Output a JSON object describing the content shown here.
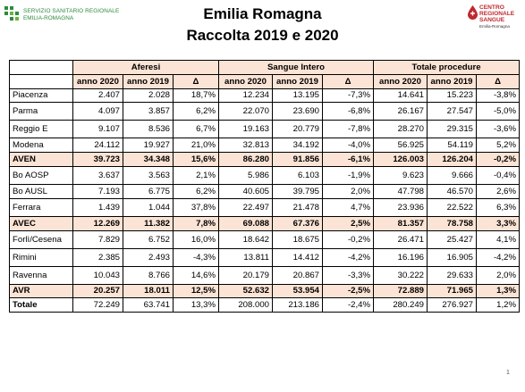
{
  "header": {
    "logo_left_line1": "SERVIZIO SANITARIO REGIONALE",
    "logo_left_line2": "EMILIA-ROMAGNA",
    "logo_right_line1": "CENTRO",
    "logo_right_line2": "REGIONALE",
    "logo_right_line3": "SANGUE",
    "logo_right_line4": "Emilia-Romagna",
    "title_line1": "Emilia Romagna",
    "title_line2": "Raccolta 2019 e 2020"
  },
  "table": {
    "groups": [
      "Aferesi",
      "Sangue Intero",
      "Totale procedure"
    ],
    "subheaders": [
      "anno 2020",
      "anno 2019",
      "Δ",
      "anno 2020",
      "anno 2019",
      "Δ",
      "anno 2020",
      "anno 2019",
      "Δ"
    ],
    "rows": [
      {
        "label": "Piacenza",
        "type": "normal",
        "cells": [
          "2.407",
          "2.028",
          "18,7%",
          "12.234",
          "13.195",
          "-7,3%",
          "14.641",
          "15.223",
          "-3,8%"
        ]
      },
      {
        "label": "Parma",
        "type": "tall",
        "cells": [
          "4.097",
          "3.857",
          "6,2%",
          "22.070",
          "23.690",
          "-6,8%",
          "26.167",
          "27.547",
          "-5,0%"
        ]
      },
      {
        "label": "Reggio E",
        "type": "tall",
        "cells": [
          "9.107",
          "8.536",
          "6,7%",
          "19.163",
          "20.779",
          "-7,8%",
          "28.270",
          "29.315",
          "-3,6%"
        ]
      },
      {
        "label": "Modena",
        "type": "normal",
        "cells": [
          "24.112",
          "19.927",
          "21,0%",
          "32.813",
          "34.192",
          "-4,0%",
          "56.925",
          "54.119",
          "5,2%"
        ]
      },
      {
        "label": "AVEN",
        "type": "sum",
        "cells": [
          "39.723",
          "34.348",
          "15,6%",
          "86.280",
          "91.856",
          "-6,1%",
          "126.003",
          "126.204",
          "-0,2%"
        ]
      },
      {
        "label": "Bo AOSP",
        "type": "tall",
        "cells": [
          "3.637",
          "3.563",
          "2,1%",
          "5.986",
          "6.103",
          "-1,9%",
          "9.623",
          "9.666",
          "-0,4%"
        ]
      },
      {
        "label": "Bo AUSL",
        "type": "normal",
        "cells": [
          "7.193",
          "6.775",
          "6,2%",
          "40.605",
          "39.795",
          "2,0%",
          "47.798",
          "46.570",
          "2,6%"
        ]
      },
      {
        "label": "Ferrara",
        "type": "tall",
        "cells": [
          "1.439",
          "1.044",
          "37,8%",
          "22.497",
          "21.478",
          "4,7%",
          "23.936",
          "22.522",
          "6,3%"
        ]
      },
      {
        "label": "AVEC",
        "type": "sum",
        "cells": [
          "12.269",
          "11.382",
          "7,8%",
          "69.088",
          "67.376",
          "2,5%",
          "81.357",
          "78.758",
          "3,3%"
        ]
      },
      {
        "label": "Forlì/Cesena",
        "type": "tall",
        "cells": [
          "7.829",
          "6.752",
          "16,0%",
          "18.642",
          "18.675",
          "-0,2%",
          "26.471",
          "25.427",
          "4,1%"
        ]
      },
      {
        "label": "Rimini",
        "type": "tall",
        "cells": [
          "2.385",
          "2.493",
          "-4,3%",
          "13.811",
          "14.412",
          "-4,2%",
          "16.196",
          "16.905",
          "-4,2%"
        ]
      },
      {
        "label": "Ravenna",
        "type": "tall",
        "cells": [
          "10.043",
          "8.766",
          "14,6%",
          "20.179",
          "20.867",
          "-3,3%",
          "30.222",
          "29.633",
          "2,0%"
        ]
      },
      {
        "label": "AVR",
        "type": "sum",
        "cells": [
          "20.257",
          "18.011",
          "12,5%",
          "52.632",
          "53.954",
          "-2,5%",
          "72.889",
          "71.965",
          "1,3%"
        ]
      },
      {
        "label": "Totale",
        "type": "total",
        "cells": [
          "72.249",
          "63.741",
          "13,3%",
          "208.000",
          "213.186",
          "-2,4%",
          "280.249",
          "276.927",
          "1,2%"
        ]
      }
    ]
  },
  "footer": {
    "page_number": "1"
  }
}
